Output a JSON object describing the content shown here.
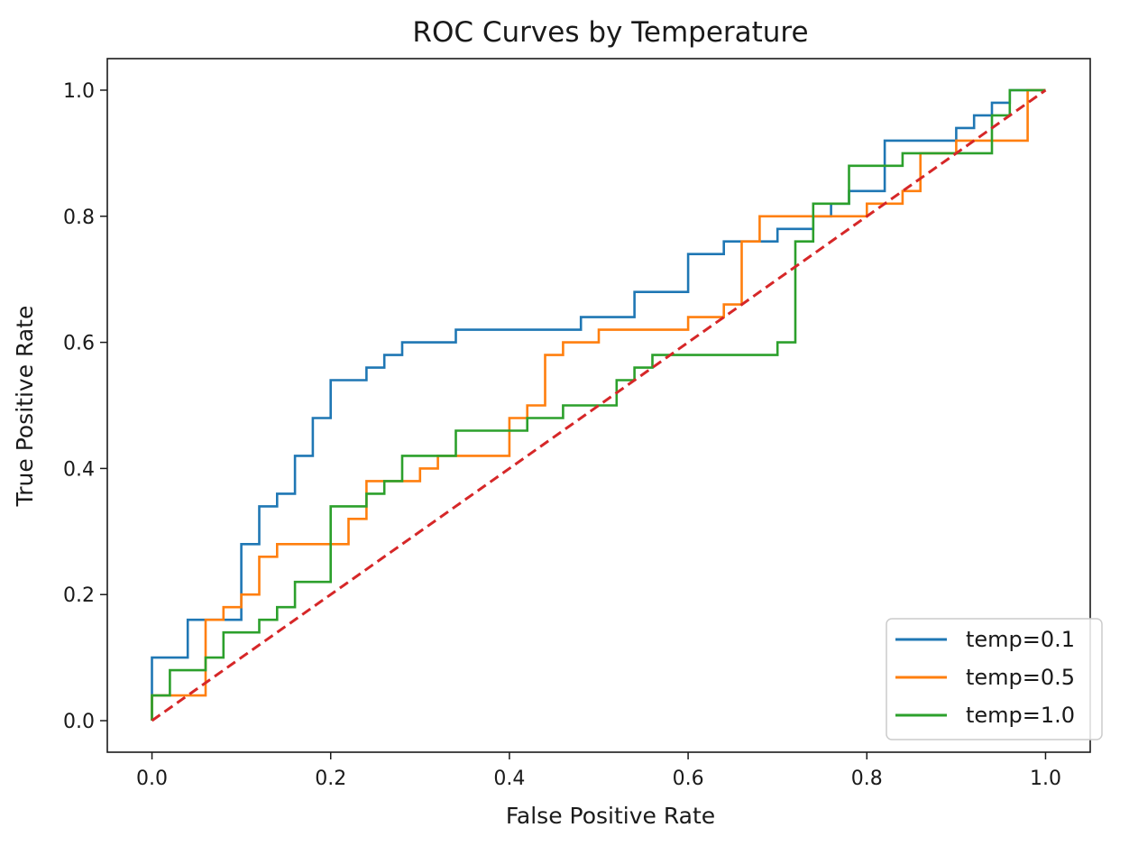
{
  "chart_data": {
    "type": "line",
    "title": "ROC Curves by Temperature",
    "xlabel": "False Positive Rate",
    "ylabel": "True Positive Rate",
    "xlim": [
      -0.05,
      1.05
    ],
    "ylim": [
      -0.05,
      1.05
    ],
    "xticks": [
      "0.0",
      "0.2",
      "0.4",
      "0.6",
      "0.8",
      "1.0"
    ],
    "yticks": [
      "0.0",
      "0.2",
      "0.4",
      "0.6",
      "0.8",
      "1.0"
    ],
    "grid": false,
    "legend_position": "bottom-right",
    "series": [
      {
        "name": "temp=0.1",
        "color": "#1f77b4",
        "step": true,
        "points": [
          [
            0,
            0
          ],
          [
            0,
            0.1
          ],
          [
            0.04,
            0.1
          ],
          [
            0.04,
            0.16
          ],
          [
            0.06,
            0.16
          ],
          [
            0.1,
            0.16
          ],
          [
            0.1,
            0.28
          ],
          [
            0.12,
            0.28
          ],
          [
            0.12,
            0.34
          ],
          [
            0.14,
            0.34
          ],
          [
            0.14,
            0.36
          ],
          [
            0.16,
            0.36
          ],
          [
            0.16,
            0.42
          ],
          [
            0.18,
            0.42
          ],
          [
            0.18,
            0.48
          ],
          [
            0.2,
            0.48
          ],
          [
            0.2,
            0.54
          ],
          [
            0.24,
            0.54
          ],
          [
            0.24,
            0.56
          ],
          [
            0.26,
            0.56
          ],
          [
            0.26,
            0.58
          ],
          [
            0.28,
            0.58
          ],
          [
            0.28,
            0.6
          ],
          [
            0.34,
            0.6
          ],
          [
            0.34,
            0.62
          ],
          [
            0.48,
            0.62
          ],
          [
            0.48,
            0.64
          ],
          [
            0.54,
            0.64
          ],
          [
            0.54,
            0.68
          ],
          [
            0.6,
            0.68
          ],
          [
            0.6,
            0.74
          ],
          [
            0.64,
            0.74
          ],
          [
            0.64,
            0.76
          ],
          [
            0.7,
            0.76
          ],
          [
            0.7,
            0.78
          ],
          [
            0.74,
            0.78
          ],
          [
            0.74,
            0.8
          ],
          [
            0.76,
            0.8
          ],
          [
            0.76,
            0.82
          ],
          [
            0.78,
            0.82
          ],
          [
            0.78,
            0.84
          ],
          [
            0.82,
            0.84
          ],
          [
            0.82,
            0.92
          ],
          [
            0.9,
            0.92
          ],
          [
            0.9,
            0.94
          ],
          [
            0.92,
            0.94
          ],
          [
            0.92,
            0.96
          ],
          [
            0.94,
            0.96
          ],
          [
            0.94,
            0.98
          ],
          [
            0.96,
            0.98
          ],
          [
            0.96,
            1.0
          ],
          [
            1.0,
            1.0
          ]
        ]
      },
      {
        "name": "temp=0.5",
        "color": "#ff7f0e",
        "step": true,
        "points": [
          [
            0,
            0
          ],
          [
            0,
            0.04
          ],
          [
            0.06,
            0.04
          ],
          [
            0.06,
            0.16
          ],
          [
            0.08,
            0.16
          ],
          [
            0.08,
            0.18
          ],
          [
            0.1,
            0.18
          ],
          [
            0.1,
            0.2
          ],
          [
            0.12,
            0.2
          ],
          [
            0.12,
            0.26
          ],
          [
            0.14,
            0.26
          ],
          [
            0.14,
            0.28
          ],
          [
            0.22,
            0.28
          ],
          [
            0.22,
            0.32
          ],
          [
            0.24,
            0.32
          ],
          [
            0.24,
            0.38
          ],
          [
            0.28,
            0.38
          ],
          [
            0.3,
            0.38
          ],
          [
            0.3,
            0.4
          ],
          [
            0.32,
            0.4
          ],
          [
            0.32,
            0.42
          ],
          [
            0.4,
            0.42
          ],
          [
            0.4,
            0.48
          ],
          [
            0.42,
            0.48
          ],
          [
            0.42,
            0.5
          ],
          [
            0.44,
            0.5
          ],
          [
            0.44,
            0.58
          ],
          [
            0.46,
            0.58
          ],
          [
            0.46,
            0.6
          ],
          [
            0.5,
            0.6
          ],
          [
            0.5,
            0.62
          ],
          [
            0.6,
            0.62
          ],
          [
            0.6,
            0.64
          ],
          [
            0.64,
            0.64
          ],
          [
            0.64,
            0.66
          ],
          [
            0.66,
            0.66
          ],
          [
            0.66,
            0.76
          ],
          [
            0.68,
            0.76
          ],
          [
            0.68,
            0.8
          ],
          [
            0.8,
            0.8
          ],
          [
            0.8,
            0.82
          ],
          [
            0.84,
            0.82
          ],
          [
            0.84,
            0.84
          ],
          [
            0.86,
            0.84
          ],
          [
            0.86,
            0.9
          ],
          [
            0.9,
            0.9
          ],
          [
            0.9,
            0.92
          ],
          [
            0.98,
            0.92
          ],
          [
            0.98,
            1.0
          ],
          [
            1.0,
            1.0
          ]
        ]
      },
      {
        "name": "temp=1.0",
        "color": "#2ca02c",
        "step": true,
        "points": [
          [
            0,
            0
          ],
          [
            0,
            0.04
          ],
          [
            0.02,
            0.04
          ],
          [
            0.02,
            0.08
          ],
          [
            0.06,
            0.08
          ],
          [
            0.06,
            0.1
          ],
          [
            0.08,
            0.1
          ],
          [
            0.08,
            0.14
          ],
          [
            0.12,
            0.14
          ],
          [
            0.12,
            0.16
          ],
          [
            0.14,
            0.16
          ],
          [
            0.14,
            0.18
          ],
          [
            0.16,
            0.18
          ],
          [
            0.16,
            0.22
          ],
          [
            0.2,
            0.22
          ],
          [
            0.2,
            0.34
          ],
          [
            0.24,
            0.34
          ],
          [
            0.24,
            0.36
          ],
          [
            0.26,
            0.36
          ],
          [
            0.26,
            0.38
          ],
          [
            0.28,
            0.38
          ],
          [
            0.28,
            0.42
          ],
          [
            0.34,
            0.42
          ],
          [
            0.34,
            0.46
          ],
          [
            0.42,
            0.46
          ],
          [
            0.42,
            0.48
          ],
          [
            0.46,
            0.48
          ],
          [
            0.46,
            0.5
          ],
          [
            0.52,
            0.5
          ],
          [
            0.52,
            0.54
          ],
          [
            0.54,
            0.54
          ],
          [
            0.54,
            0.56
          ],
          [
            0.56,
            0.56
          ],
          [
            0.56,
            0.58
          ],
          [
            0.7,
            0.58
          ],
          [
            0.7,
            0.6
          ],
          [
            0.72,
            0.6
          ],
          [
            0.72,
            0.76
          ],
          [
            0.74,
            0.76
          ],
          [
            0.74,
            0.82
          ],
          [
            0.78,
            0.82
          ],
          [
            0.78,
            0.88
          ],
          [
            0.84,
            0.88
          ],
          [
            0.84,
            0.9
          ],
          [
            0.94,
            0.9
          ],
          [
            0.94,
            0.96
          ],
          [
            0.96,
            0.96
          ],
          [
            0.96,
            1.0
          ],
          [
            1.0,
            1.0
          ]
        ]
      },
      {
        "name": "",
        "color": "#d62728",
        "dashed": true,
        "points": [
          [
            0,
            0
          ],
          [
            1,
            1
          ]
        ]
      }
    ]
  }
}
